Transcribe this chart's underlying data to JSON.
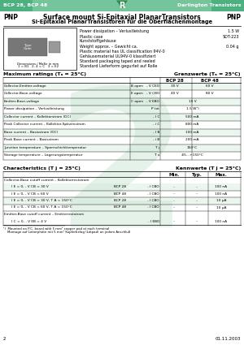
{
  "header_left": "BCP 28, BCP 48",
  "header_right": "Darlington Transistors",
  "header_bg": "#4db080",
  "header_text_color": "#ffffff",
  "title1": "Surface mount Si-Epitaxial PlanarTransistors",
  "title2": "Si-Epitaxial PlanarTransistoren für die Oberflächenmontage",
  "pnp_left": "PNP",
  "pnp_right": "PNP",
  "spec_items": [
    [
      "Power dissipation – Verlustleistung",
      "1.5 W"
    ],
    [
      "Plastic case\nKunststoffgehäuse",
      "SOT-223"
    ],
    [
      "Weight approx. – Gewicht ca.",
      "0.04 g"
    ],
    [
      "Plastic material has UL classification 94V-0\nGehäusematerial UL94V-0 klassifiziert",
      ""
    ],
    [
      "Standard packaging taped and reeled\nStandard Lieferform gegurtet auf Rolle",
      ""
    ]
  ],
  "max_ratings_title": "Maximum ratings (Tₐ = 25°C)",
  "grenzwerte_title": "Grenzwerte (Tₐ = 25°C)",
  "col_headers": [
    "BCP 28",
    "BCP 48"
  ],
  "max_rows": [
    [
      "Collector-Emitter-voltage",
      "B open",
      "- V CEO",
      "30 V",
      "60 V"
    ],
    [
      "Collector-Base-voltage",
      "E open",
      "- V CBO",
      "40 V",
      "80 V"
    ],
    [
      "Emitter-Base-voltage",
      "C open",
      "- V EBO",
      "",
      "10 V"
    ],
    [
      "Power dissipation – Verlustleistung",
      "",
      "P tot",
      "",
      "1.5 W¹)"
    ],
    [
      "Collector current – Kollektorstrom (DC)",
      "",
      "- I C",
      "",
      "500 mA"
    ],
    [
      "Peak Collector current – Kollektor-Spitzenstrom",
      "",
      "- i C",
      "",
      "800 mA"
    ],
    [
      "Base current – Basisstrom (DC)",
      "",
      "- I B",
      "",
      "100 mA"
    ],
    [
      "Peak Base current – Basisstrom",
      "",
      "- i B",
      "",
      "200 mA"
    ],
    [
      "Junction temperature – Sperrschichttemperatur",
      "",
      "T j",
      "",
      "150°C"
    ],
    [
      "Storage temperature – Lagerungstemperatur",
      "",
      "T s",
      "",
      "-65…+150°C"
    ]
  ],
  "char_title": "Characteristics (T j = 25°C)",
  "kennwerte_title": "Kennwerte (T j = 25°C)",
  "char_col_headers": [
    "Min.",
    "Typ.",
    "Max."
  ],
  "char_section1": "Collector-Base cutoff current – Kollektorreststrom",
  "char_rows1": [
    [
      "I E = 0, - V CB = 30 V",
      "BCP 28",
      "- I CBO",
      "–",
      "–",
      "100 nA"
    ],
    [
      "I E = 0, - V CB = 60 V",
      "BCP 48",
      "- I CBO",
      "–",
      "–",
      "100 nA"
    ],
    [
      "I E = 0, - V CB = 30 V, T A = 150°C",
      "BCP 28",
      "- I CBO",
      "–",
      "–",
      "10 μA"
    ],
    [
      "I E = 0, - V CB = 60 V, T A = 150°C",
      "BCP 48",
      "- I CBO",
      "–",
      "–",
      "10 μA"
    ]
  ],
  "char_section2": "Emitter-Base cutoff current – Emitterreststrom",
  "char_rows2": [
    [
      "I C = 0, - V EB = 4 V",
      "",
      "- I EBO",
      "–",
      "–",
      "100 nA"
    ]
  ],
  "footnote": "¹)  Mounted on P.C. board with 5 mm² copper pad at each terminal\n    Montage auf Leiterplatte mit 5 mm² Kupferbelag (Lötpad) an jedem Anschluß",
  "page_num": "2",
  "date": "01.11.2003",
  "bg_color": "#ffffff",
  "table_line_color": "#000000",
  "row_highlight": "#c8e6d0",
  "watermark_color": "#d0e8d8"
}
